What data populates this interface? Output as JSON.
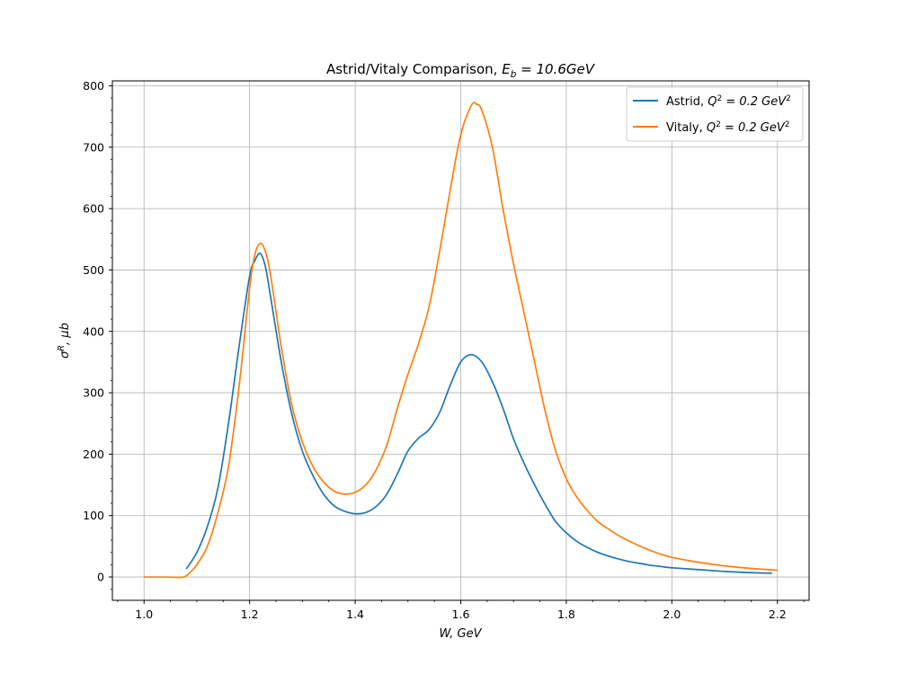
{
  "chart_data": {
    "type": "line",
    "title": {
      "prefix": "Astrid/Vitaly Comparison, ",
      "var": "E",
      "sub": "b",
      "rest": " = 10.6GeV"
    },
    "xlabel": "W, GeV",
    "ylabel": {
      "sym": "σ",
      "sup": "R",
      "rest": ", μb"
    },
    "xlim": [
      0.94,
      2.26
    ],
    "ylim": [
      -38,
      808
    ],
    "xticks": [
      1.0,
      1.2,
      1.4,
      1.6,
      1.8,
      2.0,
      2.2
    ],
    "xtick_labels": [
      "1.0",
      "1.2",
      "1.4",
      "1.6",
      "1.8",
      "2.0",
      "2.2"
    ],
    "yticks": [
      0,
      100,
      200,
      300,
      400,
      500,
      600,
      700,
      800
    ],
    "ytick_labels": [
      "0",
      "100",
      "200",
      "300",
      "400",
      "500",
      "600",
      "700",
      "800"
    ],
    "grid": true,
    "legend_position": "top-right",
    "series": [
      {
        "name": {
          "prefix": "Astrid, ",
          "var": "Q",
          "sup": "2",
          "rest": " = 0.2 GeV",
          "sup2": "2"
        },
        "color": "#1f77b4",
        "x": [
          1.08,
          1.1,
          1.12,
          1.14,
          1.16,
          1.18,
          1.2,
          1.21,
          1.22,
          1.23,
          1.24,
          1.26,
          1.28,
          1.3,
          1.32,
          1.34,
          1.36,
          1.38,
          1.4,
          1.42,
          1.44,
          1.46,
          1.48,
          1.5,
          1.52,
          1.54,
          1.56,
          1.58,
          1.6,
          1.62,
          1.64,
          1.66,
          1.68,
          1.7,
          1.72,
          1.74,
          1.76,
          1.78,
          1.8,
          1.82,
          1.84,
          1.86,
          1.88,
          1.9,
          1.92,
          1.94,
          1.96,
          1.98,
          2.0,
          2.05,
          2.1,
          2.15,
          2.19
        ],
        "y": [
          13,
          40,
          82,
          145,
          250,
          375,
          490,
          515,
          527,
          505,
          455,
          350,
          265,
          205,
          165,
          135,
          116,
          107,
          103,
          105,
          115,
          135,
          168,
          205,
          226,
          240,
          268,
          312,
          350,
          362,
          350,
          318,
          275,
          225,
          185,
          150,
          118,
          90,
          72,
          58,
          48,
          40,
          34,
          29,
          25,
          22,
          19,
          17,
          15,
          12,
          9,
          7,
          6
        ]
      },
      {
        "name": {
          "prefix": "Vitaly, ",
          "var": "Q",
          "sup": "2",
          "rest": " = 0.2 GeV",
          "sup2": "2"
        },
        "color": "#ff7f0e",
        "x": [
          1.0,
          1.04,
          1.075,
          1.09,
          1.1,
          1.12,
          1.14,
          1.16,
          1.18,
          1.2,
          1.21,
          1.22,
          1.23,
          1.24,
          1.26,
          1.28,
          1.3,
          1.32,
          1.34,
          1.36,
          1.38,
          1.4,
          1.42,
          1.44,
          1.46,
          1.48,
          1.5,
          1.52,
          1.54,
          1.56,
          1.58,
          1.6,
          1.62,
          1.63,
          1.64,
          1.66,
          1.68,
          1.7,
          1.72,
          1.74,
          1.76,
          1.78,
          1.8,
          1.82,
          1.84,
          1.86,
          1.88,
          1.9,
          1.92,
          1.94,
          1.96,
          1.98,
          2.0,
          2.05,
          2.1,
          2.15,
          2.2
        ],
        "y": [
          0,
          0,
          0,
          10,
          20,
          50,
          105,
          180,
          310,
          470,
          525,
          543,
          530,
          490,
          375,
          280,
          220,
          180,
          155,
          140,
          135,
          138,
          150,
          175,
          215,
          275,
          330,
          380,
          440,
          530,
          630,
          720,
          768,
          770,
          760,
          700,
          600,
          510,
          430,
          350,
          270,
          205,
          160,
          130,
          108,
          90,
          78,
          67,
          58,
          50,
          43,
          37,
          32,
          24,
          18,
          14,
          11
        ]
      }
    ]
  }
}
